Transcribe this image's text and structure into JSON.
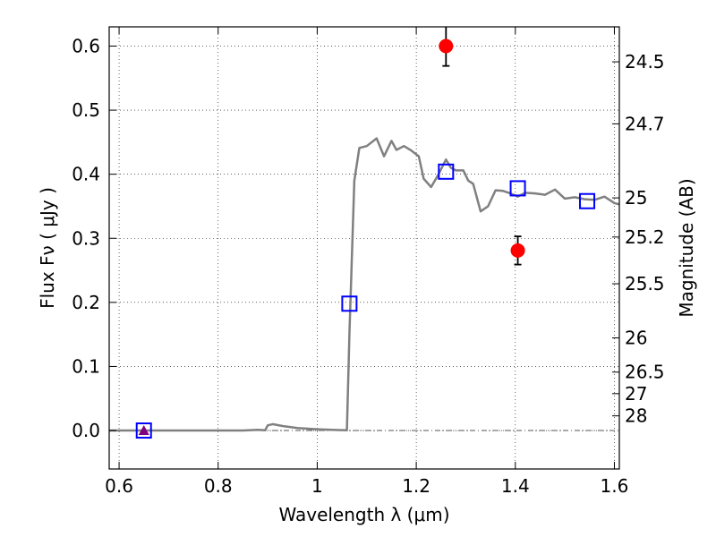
{
  "chart_data": {
    "type": "line",
    "xlabel": "Wavelength  λ (μm)",
    "ylabel": "Flux  Fν  ( μJy )",
    "y2label": "Magnitude (AB)",
    "xlim": [
      0.58,
      1.61
    ],
    "ylim": [
      -0.06,
      0.63
    ],
    "grid": true,
    "x_ticks": [
      0.6,
      0.8,
      1.0,
      1.2,
      1.4,
      1.6
    ],
    "x_tick_labels": [
      "0.6",
      "0.8",
      "1",
      "1.2",
      "1.4",
      "1.6"
    ],
    "y_ticks": [
      0.0,
      0.1,
      0.2,
      0.3,
      0.4,
      0.5,
      0.6
    ],
    "y_tick_labels": [
      "0.0",
      "0.1",
      "0.2",
      "0.3",
      "0.4",
      "0.5",
      "0.6"
    ],
    "mag_ticks": [
      "24.5",
      "24.7",
      "25",
      "25.2",
      "25.5",
      "26",
      "26.5",
      "27",
      "28"
    ],
    "series": [
      {
        "style": "model",
        "color": "#808080",
        "x": [
          0.58,
          0.65,
          0.7,
          0.8,
          0.85,
          0.88,
          0.895,
          0.9,
          0.91,
          0.93,
          0.96,
          1.0,
          1.03,
          1.06,
          1.065,
          1.075,
          1.085,
          1.1,
          1.12,
          1.135,
          1.15,
          1.16,
          1.175,
          1.19,
          1.205,
          1.215,
          1.23,
          1.245,
          1.26,
          1.27,
          1.28,
          1.295,
          1.305,
          1.315,
          1.33,
          1.345,
          1.36,
          1.375,
          1.39,
          1.405,
          1.42,
          1.44,
          1.46,
          1.48,
          1.5,
          1.52,
          1.54,
          1.56,
          1.58,
          1.6,
          1.61
        ],
        "y": [
          0.0,
          0.0,
          0.0,
          0.0,
          0.0,
          0.0012,
          0.0005,
          0.008,
          0.01,
          0.007,
          0.004,
          0.002,
          0.001,
          0.0005,
          0.15,
          0.39,
          0.441,
          0.444,
          0.456,
          0.428,
          0.452,
          0.438,
          0.444,
          0.437,
          0.428,
          0.393,
          0.38,
          0.4,
          0.423,
          0.41,
          0.406,
          0.406,
          0.39,
          0.385,
          0.342,
          0.35,
          0.375,
          0.374,
          0.37,
          0.365,
          0.371,
          0.37,
          0.368,
          0.376,
          0.362,
          0.364,
          0.361,
          0.36,
          0.365,
          0.355,
          0.353
        ]
      },
      {
        "style": "model-photometry",
        "marker": "open-square",
        "color": "#0000ff",
        "x": [
          0.65,
          1.065,
          1.26,
          1.405,
          1.545
        ],
        "y": [
          0.0,
          0.198,
          0.404,
          0.378,
          0.358
        ]
      },
      {
        "style": "observed",
        "marker": "filled-circle",
        "color": "#ff0000",
        "x": [
          1.26,
          1.405
        ],
        "y": [
          0.6,
          0.281
        ],
        "yerr": [
          0.031,
          0.022
        ]
      },
      {
        "style": "upper-limit",
        "marker": "filled-triangle",
        "color": "#800080",
        "x": [
          0.65
        ],
        "y": [
          0.0
        ],
        "yerr": [
          0.005
        ]
      }
    ]
  }
}
